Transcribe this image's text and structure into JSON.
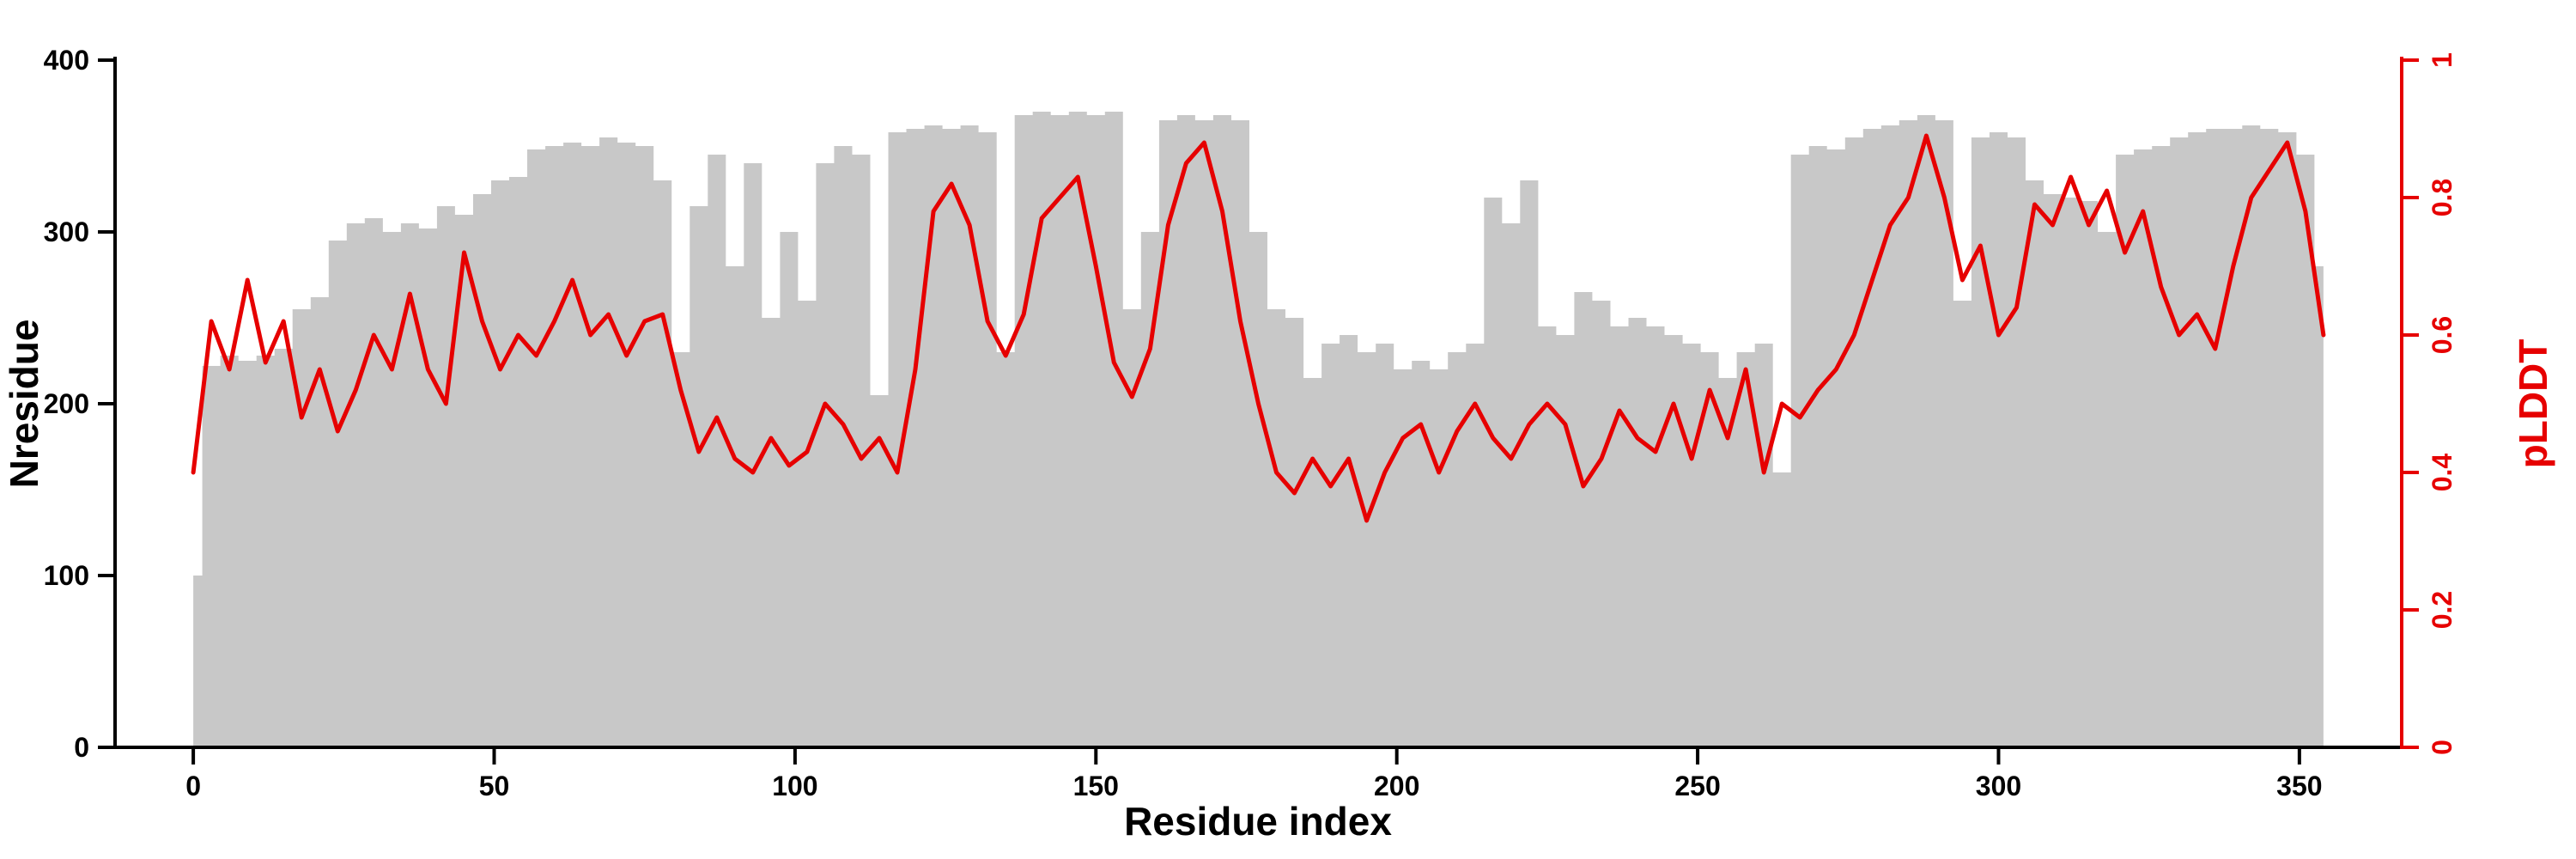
{
  "chart_data": {
    "type": "area+line",
    "title": "",
    "xlabel": "Residue index",
    "ylabel_left": "Nresidue",
    "ylabel_right": "pLDDT",
    "legend": "none",
    "grid": "off",
    "xlim": [
      -13,
      367
    ],
    "ylim_left": [
      0,
      400
    ],
    "ylim_right": [
      0,
      1
    ],
    "x_ticks": [
      0,
      50,
      100,
      150,
      200,
      250,
      300,
      350
    ],
    "y_left_ticks": [
      0,
      100,
      200,
      300,
      400
    ],
    "y_right_ticks": [
      0,
      0.2,
      0.4,
      0.6,
      0.8,
      1
    ],
    "colors": {
      "area": "#c8c8c8",
      "line": "#e60000",
      "axis_left": "#000000",
      "axis_bottom": "#000000",
      "axis_right": "#e60000"
    },
    "x": [
      0,
      3,
      6,
      9,
      12,
      15,
      18,
      21,
      24,
      27,
      30,
      33,
      36,
      39,
      42,
      45,
      48,
      51,
      54,
      57,
      60,
      63,
      66,
      69,
      72,
      75,
      78,
      81,
      84,
      87,
      90,
      93,
      96,
      99,
      102,
      105,
      108,
      111,
      114,
      117,
      120,
      123,
      126,
      129,
      132,
      135,
      138,
      141,
      144,
      147,
      150,
      153,
      156,
      159,
      162,
      165,
      168,
      171,
      174,
      177,
      180,
      183,
      186,
      189,
      192,
      195,
      198,
      201,
      204,
      207,
      210,
      213,
      216,
      219,
      222,
      225,
      228,
      231,
      234,
      237,
      240,
      243,
      246,
      249,
      252,
      255,
      258,
      261,
      264,
      267,
      270,
      273,
      276,
      279,
      282,
      285,
      288,
      291,
      294,
      297,
      300,
      303,
      306,
      309,
      312,
      315,
      318,
      321,
      324,
      327,
      330,
      333,
      336,
      339,
      342,
      345,
      348,
      351,
      354
    ],
    "series": [
      {
        "name": "Nresidue",
        "axis": "left",
        "type": "area",
        "values": [
          100,
          222,
          228,
          225,
          228,
          232,
          255,
          262,
          295,
          305,
          308,
          300,
          305,
          302,
          315,
          310,
          322,
          330,
          332,
          348,
          350,
          352,
          350,
          355,
          352,
          350,
          330,
          230,
          315,
          345,
          280,
          340,
          250,
          300,
          260,
          340,
          350,
          345,
          205,
          358,
          360,
          362,
          360,
          362,
          358,
          230,
          368,
          370,
          368,
          370,
          368,
          370,
          255,
          300,
          365,
          368,
          365,
          368,
          365,
          300,
          255,
          250,
          215,
          235,
          240,
          230,
          235,
          220,
          225,
          220,
          230,
          235,
          320,
          305,
          330,
          245,
          240,
          265,
          260,
          245,
          250,
          245,
          240,
          235,
          230,
          215,
          230,
          235,
          160,
          345,
          350,
          348,
          355,
          360,
          362,
          365,
          368,
          365,
          260,
          355,
          358,
          355,
          330,
          322,
          320,
          318,
          300,
          345,
          348,
          350,
          355,
          358,
          360,
          360,
          362,
          360,
          358,
          345,
          280
        ]
      },
      {
        "name": "pLDDT",
        "axis": "right",
        "type": "line",
        "values": [
          0.4,
          0.62,
          0.55,
          0.68,
          0.56,
          0.62,
          0.48,
          0.55,
          0.46,
          0.52,
          0.6,
          0.55,
          0.66,
          0.55,
          0.5,
          0.72,
          0.62,
          0.55,
          0.6,
          0.57,
          0.62,
          0.68,
          0.6,
          0.63,
          0.57,
          0.62,
          0.63,
          0.52,
          0.43,
          0.48,
          0.42,
          0.4,
          0.45,
          0.41,
          0.43,
          0.5,
          0.47,
          0.42,
          0.45,
          0.4,
          0.55,
          0.78,
          0.82,
          0.76,
          0.62,
          0.57,
          0.63,
          0.77,
          0.8,
          0.83,
          0.7,
          0.56,
          0.51,
          0.58,
          0.76,
          0.85,
          0.88,
          0.78,
          0.62,
          0.5,
          0.4,
          0.37,
          0.42,
          0.38,
          0.42,
          0.33,
          0.4,
          0.45,
          0.47,
          0.4,
          0.46,
          0.5,
          0.45,
          0.42,
          0.47,
          0.5,
          0.47,
          0.38,
          0.42,
          0.49,
          0.45,
          0.43,
          0.5,
          0.42,
          0.52,
          0.45,
          0.55,
          0.4,
          0.5,
          0.48,
          0.52,
          0.55,
          0.6,
          0.68,
          0.76,
          0.8,
          0.89,
          0.8,
          0.68,
          0.73,
          0.6,
          0.64,
          0.79,
          0.76,
          0.83,
          0.76,
          0.81,
          0.72,
          0.78,
          0.67,
          0.6,
          0.63,
          0.58,
          0.7,
          0.8,
          0.84,
          0.88,
          0.78,
          0.6
        ]
      }
    ]
  }
}
